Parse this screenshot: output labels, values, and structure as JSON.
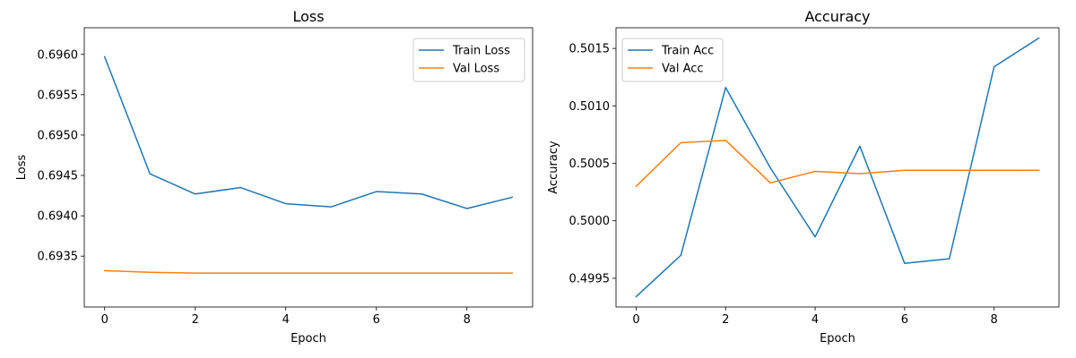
{
  "chart_data": [
    {
      "type": "line",
      "title": "Loss",
      "xlabel": "Epoch",
      "ylabel": "Loss",
      "x": [
        0,
        1,
        2,
        3,
        4,
        5,
        6,
        7,
        8,
        9
      ],
      "xlim": [
        -0.45,
        9.45
      ],
      "ylim": [
        0.69287,
        0.69633
      ],
      "xticks": [
        0,
        2,
        4,
        6,
        8
      ],
      "yticks": [
        0.6935,
        0.694,
        0.6945,
        0.695,
        0.6955,
        0.696
      ],
      "ytick_labels": [
        "0.6935",
        "0.6940",
        "0.6945",
        "0.6950",
        "0.6955",
        "0.6960"
      ],
      "legend": "top-right",
      "grid": false,
      "series": [
        {
          "name": "Train Loss",
          "color": "#1f77b4",
          "values": [
            0.69597,
            0.69452,
            0.69427,
            0.69435,
            0.69415,
            0.69411,
            0.6943,
            0.69427,
            0.69409,
            0.69423
          ]
        },
        {
          "name": "Val Loss",
          "color": "#ff7f0e",
          "values": [
            0.69332,
            0.6933,
            0.69329,
            0.69329,
            0.69329,
            0.69329,
            0.69329,
            0.69329,
            0.69329,
            0.69329
          ]
        }
      ]
    },
    {
      "type": "line",
      "title": "Accuracy",
      "xlabel": "Epoch",
      "ylabel": "Accuracy",
      "x": [
        0,
        1,
        2,
        3,
        4,
        5,
        6,
        7,
        8,
        9
      ],
      "xlim": [
        -0.45,
        9.45
      ],
      "ylim": [
        0.49925,
        0.50168
      ],
      "xticks": [
        0,
        2,
        4,
        6,
        8
      ],
      "yticks": [
        0.4995,
        0.5,
        0.5005,
        0.501,
        0.5015
      ],
      "ytick_labels": [
        "0.4995",
        "0.5000",
        "0.5005",
        "0.5010",
        "0.5015"
      ],
      "legend": "top-left",
      "grid": false,
      "series": [
        {
          "name": "Train Acc",
          "color": "#1f77b4",
          "values": [
            0.49934,
            0.4997,
            0.50116,
            0.50046,
            0.49986,
            0.50065,
            0.49963,
            0.49967,
            0.50134,
            0.50159
          ]
        },
        {
          "name": "Val Acc",
          "color": "#ff7f0e",
          "values": [
            0.5003,
            0.50068,
            0.5007,
            0.50033,
            0.50043,
            0.50041,
            0.50044,
            0.50044,
            0.50044,
            0.50044
          ]
        }
      ]
    }
  ]
}
